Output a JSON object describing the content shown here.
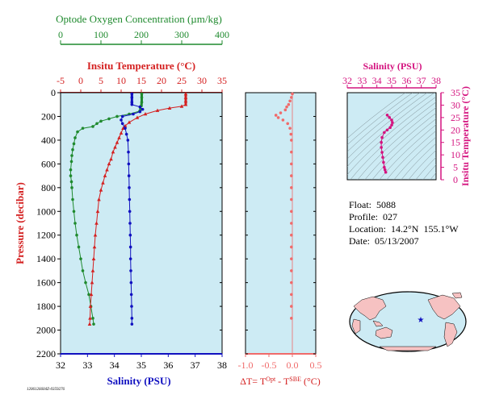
{
  "colors": {
    "oxygen": "#1f8a2e",
    "temperature": "#d42020",
    "salinity": "#1010c0",
    "delta": "#f06a6a",
    "ts": "#d4137f",
    "plot_bg": "#cdebf4",
    "axis_black": "#000000"
  },
  "main_plot": {
    "ylabel": "Pressure (decibar)",
    "yticks": [
      "0",
      "200",
      "400",
      "600",
      "800",
      "1000",
      "1200",
      "1400",
      "1600",
      "1800",
      "2000",
      "2200"
    ],
    "oxygen_axis": {
      "title": "Optode Oxygen Concentration (µm/kg)",
      "ticks": [
        "0",
        "100",
        "200",
        "300",
        "400"
      ]
    },
    "temperature_axis": {
      "title": "Insitu Temperature (°C)",
      "ticks": [
        "-5",
        "0",
        "5",
        "10",
        "15",
        "20",
        "25",
        "30",
        "35"
      ]
    },
    "salinity_axis": {
      "title": "Salinity (PSU)",
      "ticks": [
        "32",
        "33",
        "34",
        "35",
        "36",
        "37",
        "38"
      ]
    }
  },
  "delta_plot": {
    "xlabel_prefix": "ΔT= T",
    "xlabel_sup1": "Opt",
    "xlabel_mid": " - T",
    "xlabel_sup2": "SBE",
    "xlabel_suffix": " (°C)",
    "ticks": [
      "-1.0",
      "-0.5",
      "0.0",
      "0.5"
    ]
  },
  "ts_plot": {
    "xtitle": "Salinity (PSU)",
    "ytitle": "Insitu Temperature (°C)",
    "xticks": [
      "32",
      "33",
      "34",
      "35",
      "36",
      "37",
      "38"
    ],
    "yticks": [
      "35",
      "30",
      "25",
      "20",
      "15",
      "10",
      "5",
      "0"
    ]
  },
  "float_info": {
    "float": "Float:  5088",
    "profile": "Profile:  027",
    "location": "Location:  14.2°N  155.1°W",
    "date": "Date:  05/13/2007"
  },
  "footer_id": "1206126604Z-0359276",
  "chart_data": [
    {
      "type": "line",
      "description_of_series": "profiles vs pressure",
      "ylim": [
        0,
        2200
      ],
      "series": [
        {
          "name": "Optode Oxygen Concentration",
          "axis": "oxygen",
          "xlim": [
            0,
            400
          ],
          "points": [
            [
              201,
              10
            ],
            [
              201,
              40
            ],
            [
              201,
              80
            ],
            [
              200,
              110
            ],
            [
              198,
              135
            ],
            [
              196,
              155
            ],
            [
              170,
              180
            ],
            [
              140,
              200
            ],
            [
              120,
              220
            ],
            [
              100,
              240
            ],
            [
              90,
              260
            ],
            [
              80,
              285
            ],
            [
              55,
              300
            ],
            [
              42,
              330
            ],
            [
              36,
              380
            ],
            [
              33,
              430
            ],
            [
              30,
              480
            ],
            [
              28,
              530
            ],
            [
              27,
              580
            ],
            [
              25,
              650
            ],
            [
              25,
              700
            ],
            [
              27,
              750
            ],
            [
              28,
              800
            ],
            [
              30,
              900
            ],
            [
              33,
              1000
            ],
            [
              36,
              1100
            ],
            [
              40,
              1200
            ],
            [
              45,
              1300
            ],
            [
              50,
              1400
            ],
            [
              55,
              1500
            ],
            [
              62,
              1600
            ],
            [
              70,
              1700
            ],
            [
              75,
              1800
            ],
            [
              80,
              1900
            ],
            [
              82,
              1950
            ]
          ]
        },
        {
          "name": "Insitu Temperature",
          "axis": "temperature",
          "xlim": [
            -5,
            35
          ],
          "points": [
            [
              26.0,
              10
            ],
            [
              26.0,
              40
            ],
            [
              26.0,
              70
            ],
            [
              26.0,
              100
            ],
            [
              25.0,
              115
            ],
            [
              22.0,
              130
            ],
            [
              19.0,
              150
            ],
            [
              16.0,
              180
            ],
            [
              14.0,
              210
            ],
            [
              12.0,
              250
            ],
            [
              11.0,
              280
            ],
            [
              10.5,
              300
            ],
            [
              10.0,
              340
            ],
            [
              9.5,
              380
            ],
            [
              9.0,
              420
            ],
            [
              8.5,
              460
            ],
            [
              8.0,
              500
            ],
            [
              7.5,
              560
            ],
            [
              7.0,
              600
            ],
            [
              6.5,
              650
            ],
            [
              6.0,
              700
            ],
            [
              5.5,
              760
            ],
            [
              5.0,
              820
            ],
            [
              4.5,
              900
            ],
            [
              4.2,
              1000
            ],
            [
              3.9,
              1100
            ],
            [
              3.6,
              1200
            ],
            [
              3.4,
              1300
            ],
            [
              3.2,
              1400
            ],
            [
              3.0,
              1500
            ],
            [
              2.8,
              1600
            ],
            [
              2.6,
              1700
            ],
            [
              2.4,
              1800
            ],
            [
              2.3,
              1900
            ],
            [
              2.2,
              1950
            ]
          ]
        },
        {
          "name": "Salinity",
          "axis": "salinity",
          "xlim": [
            32,
            38
          ],
          "points": [
            [
              34.65,
              10
            ],
            [
              34.65,
              40
            ],
            [
              34.65,
              80
            ],
            [
              34.65,
              100
            ],
            [
              34.95,
              120
            ],
            [
              35.05,
              140
            ],
            [
              34.95,
              160
            ],
            [
              34.7,
              180
            ],
            [
              34.3,
              200
            ],
            [
              34.25,
              230
            ],
            [
              34.3,
              260
            ],
            [
              34.4,
              300
            ],
            [
              34.45,
              350
            ],
            [
              34.5,
              400
            ],
            [
              34.52,
              500
            ],
            [
              34.53,
              600
            ],
            [
              34.54,
              700
            ],
            [
              34.55,
              800
            ],
            [
              34.56,
              900
            ],
            [
              34.57,
              1000
            ],
            [
              34.58,
              1100
            ],
            [
              34.59,
              1200
            ],
            [
              34.6,
              1300
            ],
            [
              34.6,
              1400
            ],
            [
              34.61,
              1500
            ],
            [
              34.62,
              1600
            ],
            [
              34.63,
              1700
            ],
            [
              34.64,
              1800
            ],
            [
              34.65,
              1900
            ],
            [
              34.65,
              1950
            ]
          ]
        }
      ]
    },
    {
      "type": "scatter",
      "name": "delta_T",
      "xlim": [
        -1.0,
        0.5
      ],
      "ylim": [
        0,
        2200
      ],
      "points": [
        [
          0.0,
          10
        ],
        [
          -0.02,
          40
        ],
        [
          -0.05,
          70
        ],
        [
          -0.08,
          100
        ],
        [
          -0.12,
          120
        ],
        [
          -0.15,
          145
        ],
        [
          -0.25,
          170
        ],
        [
          -0.35,
          190
        ],
        [
          -0.3,
          210
        ],
        [
          -0.2,
          230
        ],
        [
          -0.1,
          260
        ],
        [
          -0.05,
          300
        ],
        [
          -0.03,
          350
        ],
        [
          -0.02,
          400
        ],
        [
          -0.02,
          500
        ],
        [
          -0.02,
          600
        ],
        [
          -0.02,
          700
        ],
        [
          -0.02,
          800
        ],
        [
          -0.02,
          900
        ],
        [
          -0.02,
          1000
        ],
        [
          -0.02,
          1100
        ],
        [
          -0.02,
          1200
        ],
        [
          -0.02,
          1300
        ],
        [
          -0.02,
          1400
        ],
        [
          -0.02,
          1500
        ],
        [
          -0.02,
          1600
        ],
        [
          -0.02,
          1700
        ],
        [
          -0.02,
          1800
        ],
        [
          -0.02,
          1900
        ]
      ]
    },
    {
      "type": "scatter",
      "name": "T-S",
      "xlim": [
        32,
        38
      ],
      "ylim": [
        0,
        35
      ],
      "points": [
        [
          34.7,
          26
        ],
        [
          34.85,
          25
        ],
        [
          35.0,
          24
        ],
        [
          35.05,
          23
        ],
        [
          35.0,
          22
        ],
        [
          34.9,
          21
        ],
        [
          34.7,
          20
        ],
        [
          34.5,
          19
        ],
        [
          34.35,
          17
        ],
        [
          34.3,
          15
        ],
        [
          34.3,
          13
        ],
        [
          34.35,
          11
        ],
        [
          34.4,
          9
        ],
        [
          34.45,
          7
        ],
        [
          34.5,
          5
        ],
        [
          34.55,
          4
        ],
        [
          34.6,
          3
        ]
      ]
    }
  ]
}
